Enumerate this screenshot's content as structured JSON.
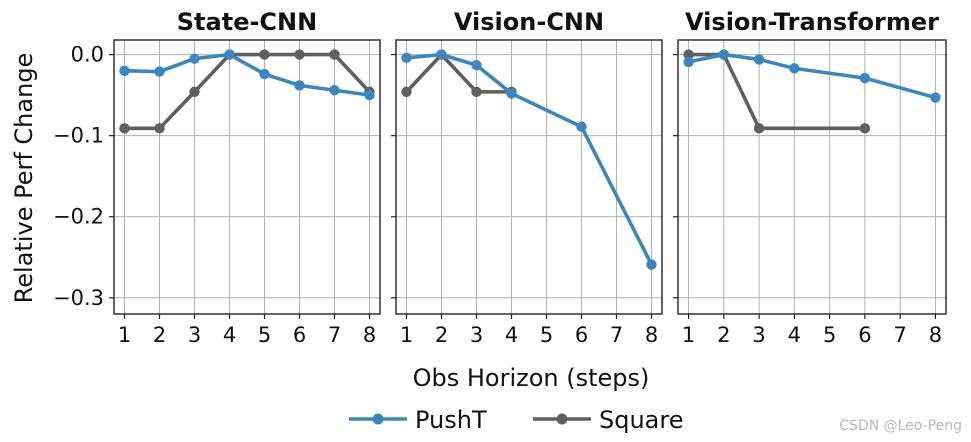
{
  "figure": {
    "ylabel": "Relative Perf Change",
    "xlabel": "Obs Horizon (steps)",
    "watermark": "CSDN @Leo-Peng"
  },
  "chart_data": [
    {
      "type": "line",
      "title": "State-CNN",
      "xlim": [
        0.7,
        8.3
      ],
      "ylim": [
        -0.32,
        0.018
      ],
      "xticks": [
        1,
        2,
        3,
        4,
        5,
        6,
        7,
        8
      ],
      "yticks": [
        0.0,
        -0.1,
        -0.2,
        -0.3
      ],
      "series": [
        {
          "name": "PushT",
          "color": "#3a86c0",
          "x": [
            1,
            2,
            3,
            4,
            5,
            6,
            7,
            8
          ],
          "y": [
            -0.02,
            -0.021,
            -0.005,
            0.0,
            -0.024,
            -0.038,
            -0.044,
            -0.05
          ]
        },
        {
          "name": "Square",
          "color": "#5f5f5f",
          "x": [
            1,
            2,
            3,
            4,
            5,
            6,
            7,
            8
          ],
          "y": [
            -0.091,
            -0.091,
            -0.046,
            0.0,
            0.0,
            0.0,
            0.0,
            -0.046
          ]
        }
      ]
    },
    {
      "type": "line",
      "title": "Vision-CNN",
      "xlim": [
        0.7,
        8.3
      ],
      "ylim": [
        -0.32,
        0.018
      ],
      "xticks": [
        1,
        2,
        3,
        4,
        5,
        6,
        7,
        8
      ],
      "yticks": [
        0.0,
        -0.1,
        -0.2,
        -0.3
      ],
      "series": [
        {
          "name": "PushT",
          "color": "#3a86c0",
          "x": [
            1,
            2,
            3,
            4,
            6,
            8
          ],
          "y": [
            -0.004,
            0.0,
            -0.013,
            -0.048,
            -0.089,
            -0.259
          ]
        },
        {
          "name": "Square",
          "color": "#5f5f5f",
          "x": [
            1,
            2,
            3,
            4
          ],
          "y": [
            -0.046,
            0.0,
            -0.046,
            -0.046
          ]
        }
      ]
    },
    {
      "type": "line",
      "title": "Vision-Transformer",
      "xlim": [
        0.7,
        8.3
      ],
      "ylim": [
        -0.32,
        0.018
      ],
      "xticks": [
        1,
        2,
        3,
        4,
        5,
        6,
        7,
        8
      ],
      "yticks": [
        0.0,
        -0.1,
        -0.2,
        -0.3
      ],
      "series": [
        {
          "name": "PushT",
          "color": "#3a86c0",
          "x": [
            1,
            2,
            3,
            4,
            6,
            8
          ],
          "y": [
            -0.009,
            0.0,
            -0.006,
            -0.017,
            -0.029,
            -0.053
          ]
        },
        {
          "name": "Square",
          "color": "#5f5f5f",
          "x": [
            1,
            2,
            3,
            6
          ],
          "y": [
            0.0,
            0.0,
            -0.091,
            -0.091
          ]
        }
      ]
    }
  ],
  "legend": {
    "placement": "bottom-center",
    "items": [
      {
        "name": "PushT",
        "color": "#3a86c0"
      },
      {
        "name": "Square",
        "color": "#5f5f5f"
      }
    ]
  }
}
